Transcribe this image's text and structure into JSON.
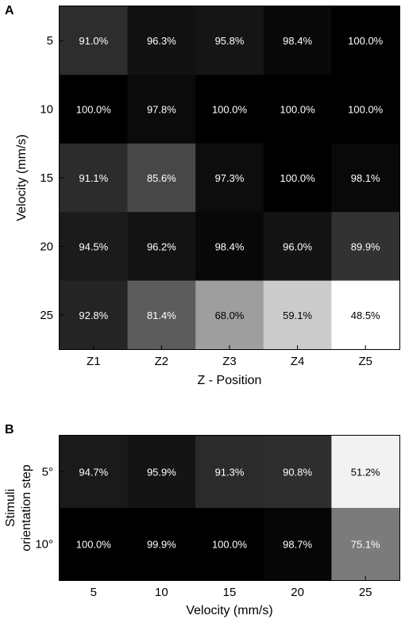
{
  "colors": {
    "text_on_dark": "#ffffff",
    "text_on_light": "#000000",
    "frame": "#000000"
  },
  "chart_data": [
    {
      "panel_label": "A",
      "type": "heatmap",
      "colormap": "grayscale, darker = higher",
      "color_range": [
        48.5,
        100.0
      ],
      "xlabel": "Z - Position",
      "ylabel": "Velocity (mm/s)",
      "x_categories": [
        "Z1",
        "Z2",
        "Z3",
        "Z4",
        "Z5"
      ],
      "y_categories": [
        "5",
        "10",
        "15",
        "20",
        "25"
      ],
      "values": [
        [
          91.0,
          96.3,
          95.8,
          98.4,
          100.0
        ],
        [
          100.0,
          97.8,
          100.0,
          100.0,
          100.0
        ],
        [
          91.1,
          85.6,
          97.3,
          100.0,
          98.1
        ],
        [
          94.5,
          96.2,
          98.4,
          96.0,
          89.9
        ],
        [
          92.8,
          81.4,
          68.0,
          59.1,
          48.5
        ]
      ],
      "labels": [
        [
          "91.0%",
          "96.3%",
          "95.8%",
          "98.4%",
          "100.0%"
        ],
        [
          "100.0%",
          "97.8%",
          "100.0%",
          "100.0%",
          "100.0%"
        ],
        [
          "91.1%",
          "85.6%",
          "97.3%",
          "100.0%",
          "98.1%"
        ],
        [
          "94.5%",
          "96.2%",
          "98.4%",
          "96.0%",
          "89.9%"
        ],
        [
          "92.8%",
          "81.4%",
          "68.0%",
          "59.1%",
          "48.5%"
        ]
      ]
    },
    {
      "panel_label": "B",
      "type": "heatmap",
      "colormap": "grayscale, darker = higher",
      "color_range": [
        48.5,
        100.0
      ],
      "xlabel": "Velocity (mm/s)",
      "ylabel": [
        "Stimuli",
        "orientation step"
      ],
      "x_categories": [
        "5",
        "10",
        "15",
        "20",
        "25"
      ],
      "y_categories": [
        "5°",
        "10°"
      ],
      "values": [
        [
          94.7,
          95.9,
          91.3,
          90.8,
          51.2
        ],
        [
          100.0,
          99.9,
          100.0,
          98.7,
          75.1
        ]
      ],
      "labels": [
        [
          "94.7%",
          "95.9%",
          "91.3%",
          "90.8%",
          "51.2%"
        ],
        [
          "100.0%",
          "99.9%",
          "100.0%",
          "98.7%",
          "75.1%"
        ]
      ]
    }
  ]
}
